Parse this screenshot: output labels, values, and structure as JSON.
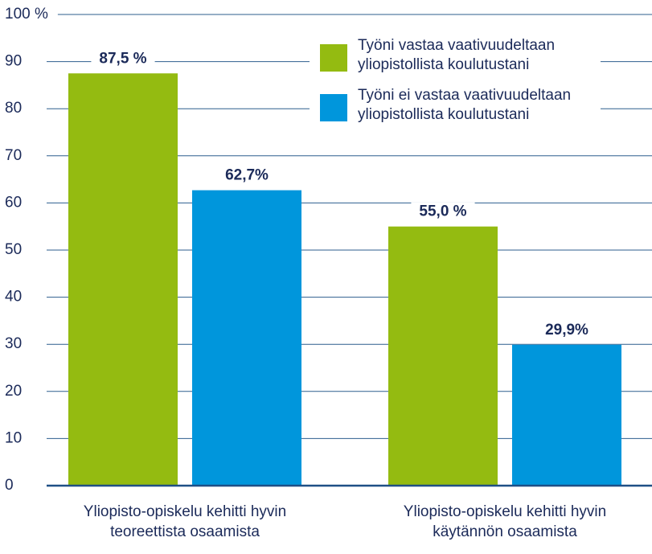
{
  "chart_data": {
    "type": "bar",
    "categories": [
      "Yliopisto-opiskelu kehitti hyvin teoreettista osaamista",
      "Yliopisto-opiskelu kehitti hyvin käytännön osaamista"
    ],
    "series": [
      {
        "name": "Työni vastaa vaativuudeltaan yliopistollista koulutustani",
        "color": "#94bb11",
        "values": [
          87.5,
          55.0
        ],
        "value_labels": [
          "87,5 %",
          "55,0 %"
        ]
      },
      {
        "name": "Työni ei vastaa vaativuudeltaan yliopistollista koulutustani",
        "color": "#0096dc",
        "values": [
          62.7,
          29.9
        ],
        "value_labels": [
          "62,7%",
          "29,9%"
        ]
      }
    ],
    "ylim": [
      0,
      100
    ],
    "yticks": [
      0,
      10,
      20,
      30,
      40,
      50,
      60,
      70,
      80,
      90,
      {
        "value": 100,
        "label": "100 %"
      }
    ],
    "grid": true,
    "legend": "top-right"
  }
}
